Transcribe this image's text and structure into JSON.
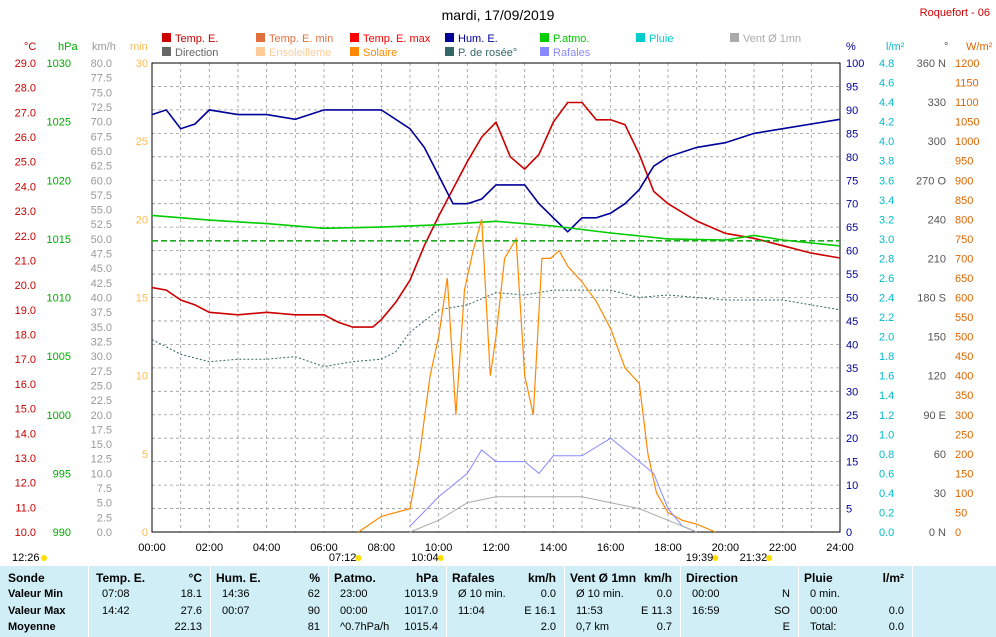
{
  "header": {
    "title": "mardi, 17/09/2019",
    "station": "Roquefort - 06"
  },
  "legend": [
    {
      "label": "Temp. E.",
      "color": "#cc0000"
    },
    {
      "label": "Temp. E. min",
      "color": "#e07040"
    },
    {
      "label": "Temp. E. max",
      "color": "#ff0000"
    },
    {
      "label": "Hum. E.",
      "color": "#000099"
    },
    {
      "label": "P.atmo.",
      "color": "#00cc00"
    },
    {
      "label": "Pluie",
      "color": "#00cccc"
    },
    {
      "label": "Vent Ø 1mn",
      "color": "#aaaaaa"
    },
    {
      "label": "Direction",
      "color": "#666666"
    },
    {
      "label": "Ensoleilleme",
      "color": "#ffcc99"
    },
    {
      "label": "Solaire",
      "color": "#ff8800"
    },
    {
      "label": "P. de rosée°",
      "color": "#336666"
    },
    {
      "label": "Rafales",
      "color": "#8888ff"
    }
  ],
  "axes": {
    "units": [
      "°C",
      "hPa",
      "km/h",
      "min",
      "%",
      "l/m²",
      "°",
      "W/m²"
    ],
    "temp": {
      "min": 10.0,
      "max": 29.0,
      "step": 1.0,
      "color": "#cc0000"
    },
    "pressure": {
      "min": 990,
      "max": 1030,
      "step": 5,
      "color": "#00aa00"
    },
    "wind": {
      "min": 0.0,
      "max": 80.0,
      "step": 2.5,
      "color": "#999999"
    },
    "sun_min": {
      "min": 0,
      "max": 30,
      "step": 5,
      "color": "#ffbb55"
    },
    "humidity": {
      "min": 0,
      "max": 100,
      "step": 5,
      "color": "#000099"
    },
    "rain": {
      "min": 0.0,
      "max": 4.8,
      "step": 0.2,
      "color": "#00bbcc"
    },
    "direction": {
      "ticks": [
        "0 N",
        "30",
        "60",
        "90 E",
        "120",
        "150",
        "180 S",
        "210",
        "240",
        "270 O",
        "300",
        "330",
        "360 N"
      ],
      "color": "#555555"
    },
    "solar": {
      "min": 0,
      "max": 1200,
      "step": 50,
      "color": "#dd6600"
    },
    "x_ticks": [
      "00:00",
      "02:00",
      "04:00",
      "06:00",
      "08:00",
      "10:00",
      "12:00",
      "14:00",
      "16:00",
      "18:00",
      "20:00",
      "22:00",
      "24:00"
    ]
  },
  "sun_events": [
    {
      "time": "12:26",
      "hour": 0.0
    },
    {
      "time": "07:12",
      "hour": 7.2
    },
    {
      "time": "10:04",
      "hour": 10.07
    },
    {
      "time": "19:39",
      "hour": 19.65
    },
    {
      "time": "21:32",
      "hour": 21.53
    }
  ],
  "chart_data": {
    "type": "line",
    "title": "mardi, 17/09/2019",
    "x_unit": "hour",
    "xlim": [
      0,
      24
    ],
    "series": [
      {
        "name": "Temp. E.",
        "axis": "temp",
        "color": "#cc0000",
        "points": [
          [
            0,
            19.9
          ],
          [
            0.5,
            19.8
          ],
          [
            1,
            19.4
          ],
          [
            1.5,
            19.2
          ],
          [
            2,
            18.9
          ],
          [
            3,
            18.8
          ],
          [
            4,
            18.9
          ],
          [
            5,
            18.8
          ],
          [
            6,
            18.8
          ],
          [
            6.5,
            18.5
          ],
          [
            7,
            18.3
          ],
          [
            7.7,
            18.3
          ],
          [
            8,
            18.6
          ],
          [
            8.5,
            19.3
          ],
          [
            9,
            20.2
          ],
          [
            9.5,
            21.6
          ],
          [
            10,
            22.8
          ],
          [
            10.5,
            23.9
          ],
          [
            11,
            25.0
          ],
          [
            11.5,
            26.0
          ],
          [
            12,
            26.6
          ],
          [
            12.5,
            25.2
          ],
          [
            13,
            24.7
          ],
          [
            13.5,
            25.3
          ],
          [
            14,
            26.6
          ],
          [
            14.5,
            27.4
          ],
          [
            15,
            27.4
          ],
          [
            15.5,
            26.7
          ],
          [
            16,
            26.7
          ],
          [
            16.5,
            26.5
          ],
          [
            17,
            25.3
          ],
          [
            17.5,
            23.8
          ],
          [
            18,
            23.3
          ],
          [
            19,
            22.6
          ],
          [
            20,
            22.1
          ],
          [
            21,
            21.9
          ],
          [
            22,
            21.6
          ],
          [
            23,
            21.3
          ],
          [
            24,
            21.1
          ]
        ]
      },
      {
        "name": "Hum. E.",
        "axis": "humidity",
        "color": "#000099",
        "points": [
          [
            0,
            89
          ],
          [
            0.5,
            90
          ],
          [
            1,
            86
          ],
          [
            1.5,
            87
          ],
          [
            2,
            90
          ],
          [
            3,
            89
          ],
          [
            4,
            89
          ],
          [
            5,
            88
          ],
          [
            6,
            90
          ],
          [
            7,
            90
          ],
          [
            8,
            90
          ],
          [
            9,
            86
          ],
          [
            9.5,
            82
          ],
          [
            10,
            76
          ],
          [
            10.5,
            70
          ],
          [
            11,
            70
          ],
          [
            11.5,
            71
          ],
          [
            12,
            74
          ],
          [
            13,
            74
          ],
          [
            13.5,
            70
          ],
          [
            14,
            67
          ],
          [
            14.5,
            64
          ],
          [
            15,
            67
          ],
          [
            15.5,
            67
          ],
          [
            16,
            68
          ],
          [
            16.5,
            70
          ],
          [
            17,
            73
          ],
          [
            17.5,
            78
          ],
          [
            18,
            80
          ],
          [
            19,
            82
          ],
          [
            20,
            83
          ],
          [
            21,
            85
          ],
          [
            22,
            86
          ],
          [
            23,
            87
          ],
          [
            24,
            88
          ]
        ]
      },
      {
        "name": "P.atmo.",
        "axis": "pressure",
        "color": "#00cc00",
        "points": [
          [
            0,
            1017.0
          ],
          [
            2,
            1016.6
          ],
          [
            4,
            1016.3
          ],
          [
            6,
            1015.9
          ],
          [
            8,
            1016.0
          ],
          [
            10,
            1016.2
          ],
          [
            12,
            1016.5
          ],
          [
            14,
            1016.1
          ],
          [
            16,
            1015.5
          ],
          [
            18,
            1015.0
          ],
          [
            20,
            1014.9
          ],
          [
            21,
            1015.3
          ],
          [
            22,
            1014.9
          ],
          [
            24,
            1014.4
          ]
        ]
      },
      {
        "name": "P. de rosée°",
        "axis": "temp",
        "color": "#336666",
        "points": [
          [
            0,
            17.8
          ],
          [
            1,
            17.2
          ],
          [
            2,
            16.9
          ],
          [
            3,
            17.0
          ],
          [
            4,
            17.0
          ],
          [
            5,
            17.1
          ],
          [
            6,
            16.7
          ],
          [
            7,
            16.9
          ],
          [
            8,
            17.0
          ],
          [
            8.5,
            17.3
          ],
          [
            9,
            18.1
          ],
          [
            10,
            19.0
          ],
          [
            11,
            19.2
          ],
          [
            12,
            19.7
          ],
          [
            13,
            19.6
          ],
          [
            14,
            19.8
          ],
          [
            15,
            19.8
          ],
          [
            16,
            19.8
          ],
          [
            17,
            19.5
          ],
          [
            18,
            19.6
          ],
          [
            19,
            19.5
          ],
          [
            20,
            19.4
          ],
          [
            21,
            19.4
          ],
          [
            22,
            19.4
          ],
          [
            23,
            19.2
          ],
          [
            24,
            19.0
          ]
        ]
      },
      {
        "name": "Solaire",
        "axis": "solar",
        "color": "#ff8800",
        "points": [
          [
            7.2,
            0
          ],
          [
            8,
            40
          ],
          [
            9,
            60
          ],
          [
            9.3,
            180
          ],
          [
            9.7,
            400
          ],
          [
            10,
            500
          ],
          [
            10.3,
            650
          ],
          [
            10.6,
            300
          ],
          [
            10.9,
            620
          ],
          [
            11.2,
            720
          ],
          [
            11.5,
            800
          ],
          [
            11.8,
            400
          ],
          [
            12,
            500
          ],
          [
            12.3,
            700
          ],
          [
            12.7,
            750
          ],
          [
            13,
            400
          ],
          [
            13.3,
            300
          ],
          [
            13.6,
            700
          ],
          [
            13.9,
            700
          ],
          [
            14.2,
            720
          ],
          [
            14.5,
            680
          ],
          [
            15,
            640
          ],
          [
            15.5,
            590
          ],
          [
            16,
            520
          ],
          [
            16.5,
            420
          ],
          [
            17,
            380
          ],
          [
            17.3,
            200
          ],
          [
            17.6,
            100
          ],
          [
            18,
            50
          ],
          [
            18.5,
            30
          ],
          [
            19,
            20
          ],
          [
            19.65,
            0
          ]
        ]
      },
      {
        "name": "Rafales",
        "axis": "wind",
        "color": "#8888ff",
        "points": [
          [
            9,
            1
          ],
          [
            10,
            6
          ],
          [
            11,
            10
          ],
          [
            11.5,
            14
          ],
          [
            12,
            12
          ],
          [
            13,
            12
          ],
          [
            13.5,
            10
          ],
          [
            14,
            13
          ],
          [
            15,
            13
          ],
          [
            16,
            16
          ],
          [
            17,
            12
          ],
          [
            17.5,
            10
          ],
          [
            18,
            4
          ],
          [
            18.5,
            1
          ],
          [
            19,
            0
          ]
        ]
      },
      {
        "name": "Vent Ø 1mn",
        "axis": "wind",
        "color": "#aaaaaa",
        "points": [
          [
            9,
            0
          ],
          [
            10,
            2
          ],
          [
            11,
            5
          ],
          [
            12,
            6
          ],
          [
            13,
            6
          ],
          [
            14,
            6
          ],
          [
            15,
            6
          ],
          [
            16,
            5
          ],
          [
            17,
            4
          ],
          [
            18,
            2
          ],
          [
            19,
            0
          ]
        ]
      },
      {
        "name": "Pluie",
        "axis": "rain",
        "color": "#00cccc",
        "points": [
          [
            0,
            2.98
          ],
          [
            24,
            2.98
          ]
        ]
      }
    ]
  },
  "summary": {
    "columns": [
      {
        "title": "Sonde",
        "unit": "",
        "rows": [
          "Valeur Min",
          "Valeur Max",
          "Moyenne"
        ]
      },
      {
        "title": "Temp. E.",
        "unit": "°C",
        "rows": [
          [
            "07:08",
            "18.1"
          ],
          [
            "14:42",
            "27.6"
          ],
          [
            "",
            "22.13"
          ]
        ]
      },
      {
        "title": "Hum. E.",
        "unit": "%",
        "rows": [
          [
            "14:36",
            "62"
          ],
          [
            "00:07",
            "90"
          ],
          [
            "",
            "81"
          ]
        ]
      },
      {
        "title": "P.atmo.",
        "unit": "hPa",
        "rows": [
          [
            "23:00",
            "1013.9"
          ],
          [
            "00:00",
            "1017.0"
          ],
          [
            "^0.7hPa/h",
            "1015.4"
          ]
        ]
      },
      {
        "title": "Rafales",
        "unit": "km/h",
        "rows": [
          [
            "Ø 10 min.",
            "0.0"
          ],
          [
            "11:04",
            "E 16.1"
          ],
          [
            "",
            "2.0"
          ]
        ]
      },
      {
        "title": "Vent Ø 1mn",
        "unit": "km/h",
        "rows": [
          [
            "Ø 10 min.",
            "0.0"
          ],
          [
            "11:53",
            "E 11.3"
          ],
          [
            "0,7 km",
            "0.7"
          ]
        ]
      },
      {
        "title": "Direction",
        "unit": "",
        "rows": [
          [
            "00:00",
            "N"
          ],
          [
            "16:59",
            "SO"
          ],
          [
            "",
            "E"
          ]
        ]
      },
      {
        "title": "Pluie",
        "unit": "l/m²",
        "rows": [
          [
            "0 min.",
            ""
          ],
          [
            "00:00",
            "0.0"
          ],
          [
            "Total:",
            "0.0"
          ]
        ]
      }
    ]
  }
}
